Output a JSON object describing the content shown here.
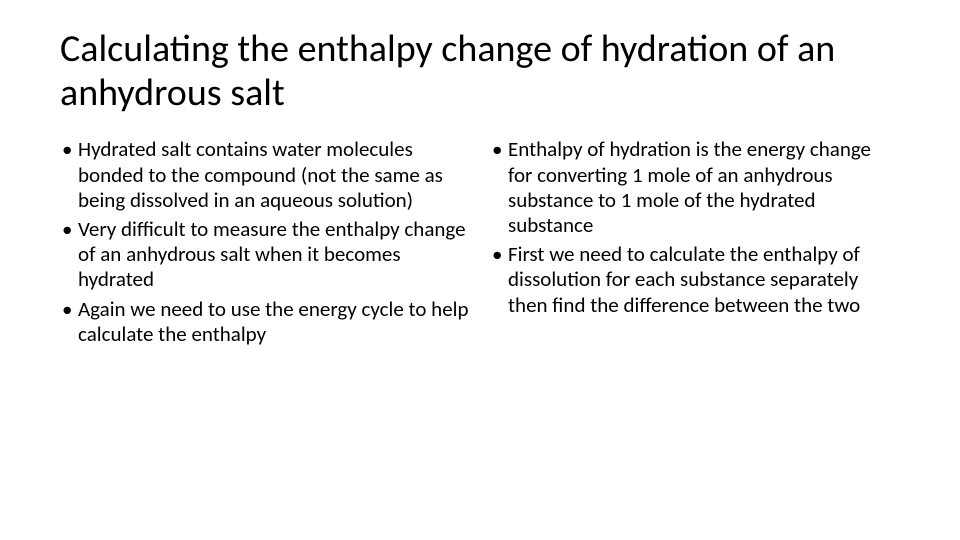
{
  "title": "Calculating the enthalpy change of hydration of an anhydrous salt",
  "leftColumn": {
    "items": [
      "Hydrated salt contains water molecules bonded to the compound (not the same as being dissolved in an aqueous solution)",
      "Very difficult to measure the enthalpy change of an anhydrous salt when it becomes hydrated",
      "Again we need to use the energy cycle to help calculate the enthalpy"
    ]
  },
  "rightColumn": {
    "items": [
      "Enthalpy of hydration is the energy change for converting 1 mole of an anhydrous substance to 1 mole of the hydrated substance",
      "First we need to calculate the enthalpy of dissolution for each substance separately then find the difference between the two"
    ]
  },
  "colors": {
    "background": "#ffffff",
    "text": "#000000"
  },
  "typography": {
    "titleFontSize": 38,
    "titleFontWeight": 300,
    "bodyFontSize": 21,
    "fontFamily": "Calibri"
  }
}
